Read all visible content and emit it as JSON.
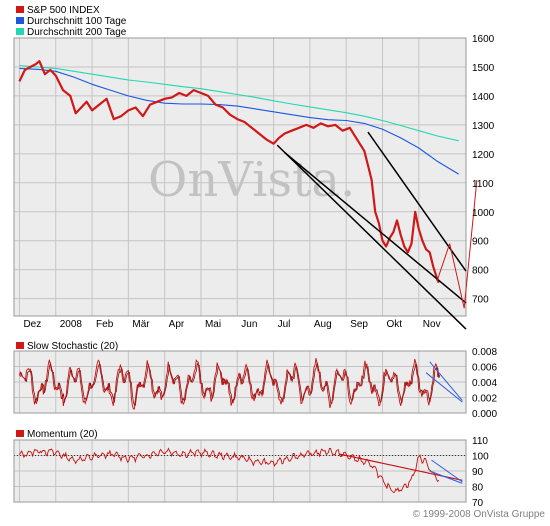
{
  "watermark": "OnVista.",
  "copyright": "© 1999-2008 OnVista Gruppe",
  "colors": {
    "price": "#d01818",
    "ma100": "#1a58e0",
    "ma200": "#22d8b0",
    "trend": "#000000",
    "indicator": "#c81010",
    "blue_trend": "#2a5ce8",
    "grid": "#c4c4c4",
    "panel_bg": "#ececec"
  },
  "chart_data": [
    {
      "type": "line",
      "legend_position": "top-left",
      "legend": [
        {
          "label": "S&P 500 INDEX",
          "color": "#d01818"
        },
        {
          "label": "Durchschnitt 100 Tage",
          "color": "#1a58e0"
        },
        {
          "label": "Durchschnitt 200 Tage",
          "color": "#22d8b0"
        }
      ],
      "x_ticks": [
        "Dez",
        "2008",
        "Feb",
        "Mär",
        "Apr",
        "Mai",
        "Jun",
        "Jul",
        "Aug",
        "Sep",
        "Okt",
        "Nov"
      ],
      "x_tick_months": [
        0,
        1,
        2,
        3,
        4,
        5,
        6,
        7,
        8,
        9,
        10,
        11
      ],
      "x_range_months": [
        -0.15,
        12.3
      ],
      "y_ticks": [
        "1600",
        "1500",
        "1400",
        "1300",
        "1200",
        "1100",
        "1000",
        "900",
        "800",
        "700"
      ],
      "ylim": [
        640,
        1600
      ],
      "grid": true,
      "series": [
        {
          "name": "S&P 500 INDEX",
          "color": "#d01818",
          "x": [
            0,
            0.15,
            0.3,
            0.45,
            0.55,
            0.7,
            0.85,
            1.0,
            1.2,
            1.4,
            1.55,
            1.7,
            1.85,
            2.0,
            2.2,
            2.4,
            2.6,
            2.8,
            3.0,
            3.2,
            3.4,
            3.6,
            3.8,
            4.0,
            4.2,
            4.4,
            4.6,
            4.8,
            5.0,
            5.2,
            5.4,
            5.6,
            5.8,
            6.0,
            6.2,
            6.4,
            6.6,
            6.8,
            7.0,
            7.15,
            7.3,
            7.5,
            7.7,
            7.9,
            8.1,
            8.3,
            8.5,
            8.7,
            8.9,
            9.1,
            9.3,
            9.5,
            9.6,
            9.7,
            9.8,
            9.9,
            10.0,
            10.1,
            10.2,
            10.3,
            10.4,
            10.5,
            10.6,
            10.7,
            10.8,
            10.9,
            11.0,
            11.1,
            11.2,
            11.3,
            11.4,
            11.5,
            11.55
          ],
          "values": [
            1450,
            1490,
            1500,
            1510,
            1520,
            1475,
            1490,
            1470,
            1420,
            1400,
            1340,
            1360,
            1380,
            1350,
            1370,
            1390,
            1320,
            1330,
            1350,
            1360,
            1330,
            1370,
            1380,
            1390,
            1395,
            1410,
            1400,
            1420,
            1410,
            1400,
            1370,
            1360,
            1335,
            1320,
            1310,
            1290,
            1270,
            1250,
            1235,
            1255,
            1270,
            1280,
            1290,
            1300,
            1290,
            1305,
            1295,
            1300,
            1280,
            1290,
            1250,
            1210,
            1160,
            1110,
            1000,
            960,
            900,
            880,
            910,
            930,
            970,
            920,
            880,
            860,
            890,
            1000,
            940,
            900,
            870,
            860,
            810,
            770,
            755
          ]
        },
        {
          "name": "Durchschnitt 100 Tage",
          "color": "#1a58e0",
          "x": [
            0,
            0.5,
            1.0,
            1.5,
            2.0,
            2.5,
            3.0,
            3.5,
            4.0,
            4.5,
            5.0,
            5.5,
            6.0,
            6.5,
            7.0,
            7.5,
            8.0,
            8.5,
            9.0,
            9.5,
            10.0,
            10.5,
            11.0,
            11.5,
            12.1
          ],
          "values": [
            1495,
            1492,
            1485,
            1465,
            1440,
            1420,
            1400,
            1385,
            1375,
            1372,
            1372,
            1370,
            1365,
            1355,
            1345,
            1335,
            1325,
            1318,
            1315,
            1305,
            1285,
            1255,
            1220,
            1175,
            1130
          ]
        },
        {
          "name": "Durchschnitt 200 Tage",
          "color": "#22d8b0",
          "x": [
            0,
            0.5,
            1.0,
            1.5,
            2.0,
            2.5,
            3.0,
            3.5,
            4.0,
            4.5,
            5.0,
            5.5,
            6.0,
            6.5,
            7.0,
            7.5,
            8.0,
            8.5,
            9.0,
            9.5,
            10.0,
            10.5,
            11.0,
            11.5,
            12.1
          ],
          "values": [
            1505,
            1500,
            1495,
            1485,
            1475,
            1465,
            1455,
            1448,
            1440,
            1432,
            1425,
            1415,
            1405,
            1395,
            1383,
            1372,
            1362,
            1352,
            1342,
            1330,
            1315,
            1298,
            1280,
            1262,
            1245
          ]
        }
      ],
      "trend_lines": [
        {
          "from": [
            7.1,
            1230
          ],
          "to": [
            12.3,
            595
          ]
        },
        {
          "from": [
            7.3,
            1205
          ],
          "to": [
            12.3,
            685
          ]
        },
        {
          "from": [
            9.6,
            1275
          ],
          "to": [
            12.3,
            795
          ]
        },
        {
          "from": [
            11.5,
            760
          ],
          "to": [
            11.85,
            890
          ]
        },
        {
          "from": [
            11.85,
            890
          ],
          "to": [
            12.25,
            667
          ]
        },
        {
          "from": [
            12.25,
            667
          ],
          "to": [
            12.6,
            1110
          ]
        }
      ]
    },
    {
      "type": "line",
      "legend": [
        {
          "label": "Slow Stochastic (20)",
          "color": "#d01818"
        }
      ],
      "y_ticks": [
        "0.008",
        "0.006",
        "0.004",
        "0.002",
        "0.000"
      ],
      "ylim": [
        0,
        0.008
      ],
      "grid": true,
      "seed": 7,
      "mean": 0.0038,
      "amplitude": 0.0018
    },
    {
      "type": "line",
      "legend": [
        {
          "label": "Momentum (20)",
          "color": "#d01818"
        }
      ],
      "y_ticks": [
        "110",
        "100",
        "90",
        "80",
        "70"
      ],
      "ylim": [
        70,
        110
      ],
      "grid": true,
      "reference_value": 100,
      "x": [
        0,
        0.5,
        1.0,
        1.5,
        2.0,
        2.5,
        3.0,
        3.5,
        4.0,
        4.5,
        5.0,
        5.5,
        6.0,
        6.5,
        7.0,
        7.5,
        8.0,
        8.5,
        9.0,
        9.5,
        9.8,
        10.0,
        10.2,
        10.4,
        10.6,
        10.8,
        11.0,
        11.2,
        11.4,
        11.55
      ],
      "values": [
        100,
        103,
        102,
        97,
        99,
        101,
        98,
        100,
        103,
        101,
        102,
        100,
        99,
        96,
        95,
        99,
        101,
        103,
        100,
        96,
        92,
        83,
        79,
        77,
        80,
        84,
        99,
        96,
        88,
        84
      ]
    }
  ]
}
